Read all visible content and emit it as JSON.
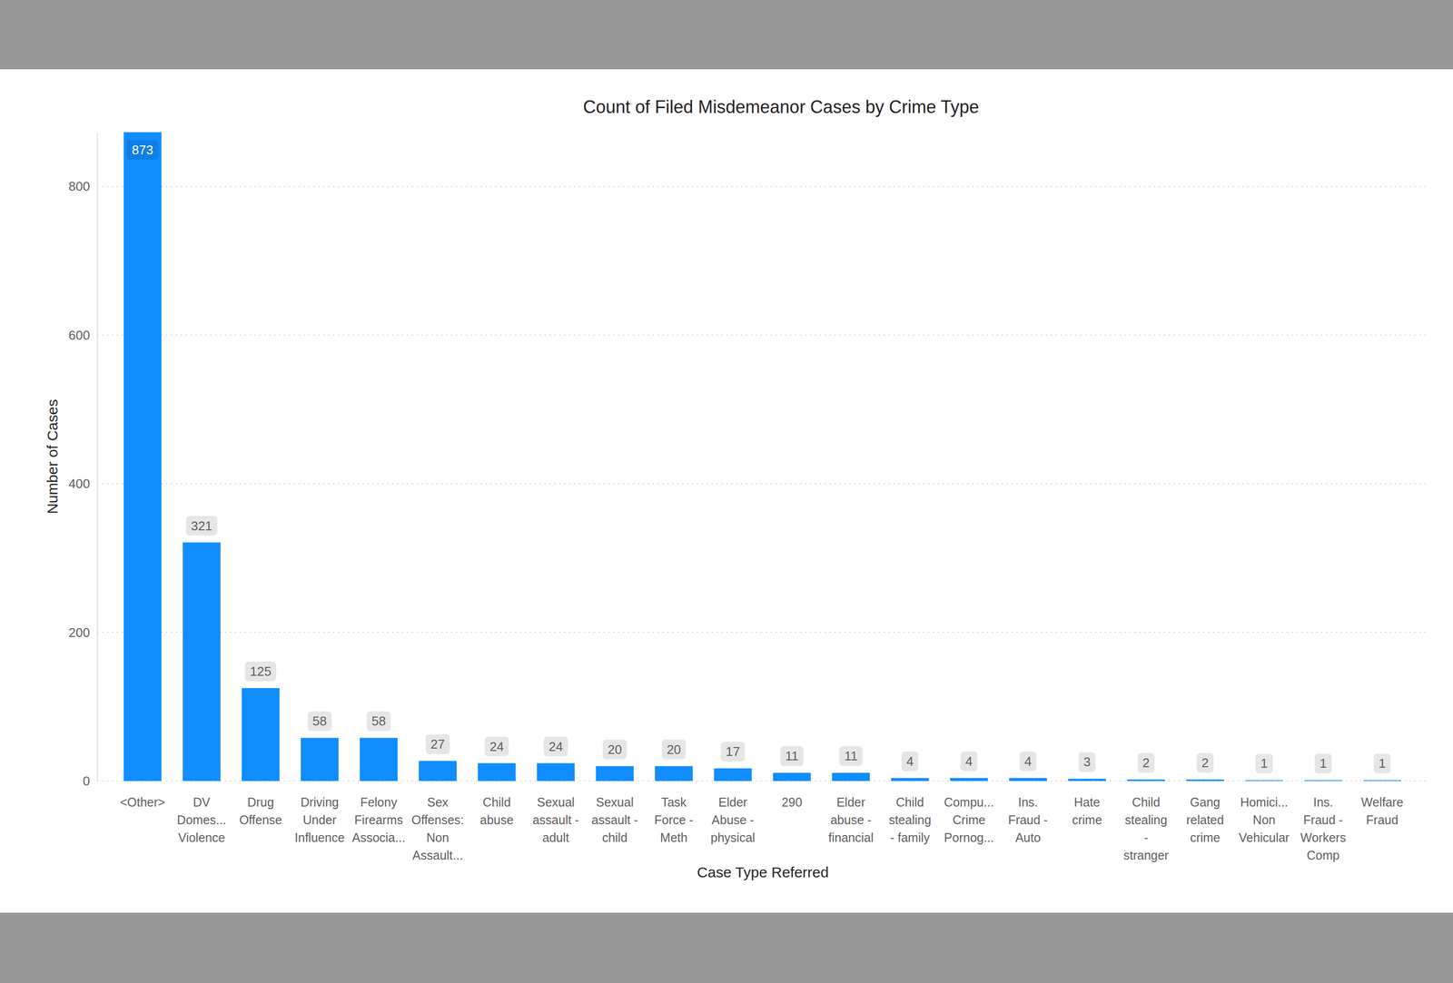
{
  "chart_data": {
    "type": "bar",
    "title": "Count of Filed Misdemeanor Cases by Crime Type",
    "x_label": "Case Type Referred",
    "y_label": "Number of Cases",
    "categories": [
      "<Other>",
      "DV Domes... Violence",
      "Drug Offense",
      "Driving Under Influence",
      "Felony Firearms Associa...",
      "Sex Offenses: Non Assault...",
      "Child abuse",
      "Sexual assault - adult",
      "Sexual assault - child",
      "Task Force - Meth",
      "Elder Abuse - physical",
      "290",
      "Elder abuse - financial",
      "Child stealing - family",
      "Compu... Crime Pornog...",
      "Ins. Fraud - Auto",
      "Hate crime",
      "Child stealing - stranger",
      "Gang related crime",
      "Homici... Non Vehicular",
      "Ins. Fraud - Workers Comp",
      "Welfare Fraud"
    ],
    "values": [
      873,
      321,
      125,
      58,
      58,
      27,
      24,
      24,
      20,
      20,
      17,
      11,
      11,
      4,
      4,
      4,
      3,
      2,
      2,
      1,
      1,
      1
    ],
    "color": "#118dff",
    "ylim": [
      0,
      873
    ],
    "yticks": [
      0,
      200,
      400,
      600,
      800
    ],
    "grid": true,
    "data_labels": true
  }
}
